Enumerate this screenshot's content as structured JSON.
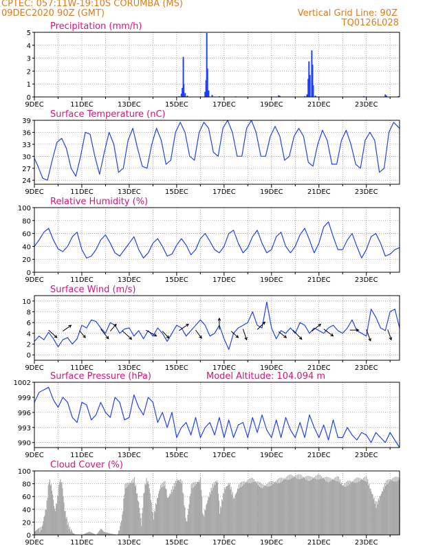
{
  "header": {
    "line1_left": "CPTEC:   057:11W-19:10S   CORUMBA (MS)",
    "line2_left": "09DEC2020 90Z (GMT)",
    "line1_right": "Vertical Grid Line: 90Z",
    "line2_right": "TQ0126L028"
  },
  "colors": {
    "header": "#e07b1a",
    "title": "#e0107a",
    "series": "#1f3fff",
    "cloud": "#a9a9a9",
    "arrow": "#000000"
  },
  "chart_data": [
    {
      "type": "bar",
      "title": "Precipitation (mm/h)",
      "ylim": [
        0,
        5
      ],
      "yticks": [
        0,
        1,
        2,
        3,
        4,
        5
      ],
      "xticks": [
        "9DEC",
        "11DEC",
        "13DEC",
        "15DEC",
        "17DEC",
        "19DEC",
        "21DEC",
        "23DEC"
      ],
      "x_day_range": [
        9,
        24.4
      ],
      "points": [
        [
          9.2,
          0.03
        ],
        [
          11.3,
          0.02
        ],
        [
          13.8,
          0.03
        ],
        [
          15.1,
          0.05
        ],
        [
          15.2,
          0.25
        ],
        [
          15.24,
          0.7
        ],
        [
          15.28,
          3.1
        ],
        [
          15.3,
          1.0
        ],
        [
          15.36,
          0.3
        ],
        [
          15.45,
          0.1
        ],
        [
          16.2,
          0.4
        ],
        [
          16.24,
          1.3
        ],
        [
          16.27,
          4.95
        ],
        [
          16.3,
          2.2
        ],
        [
          16.35,
          0.5
        ],
        [
          16.5,
          0.15
        ],
        [
          16.8,
          0.05
        ],
        [
          17.5,
          0.04
        ],
        [
          19.3,
          0.12
        ],
        [
          19.35,
          0.08
        ],
        [
          20.4,
          0.06
        ],
        [
          20.5,
          0.2
        ],
        [
          20.55,
          1.4
        ],
        [
          20.58,
          2.75
        ],
        [
          20.62,
          1.7
        ],
        [
          20.7,
          3.6
        ],
        [
          20.73,
          2.5
        ],
        [
          20.76,
          0.9
        ],
        [
          20.85,
          0.1
        ],
        [
          22.9,
          0.06
        ],
        [
          23.8,
          0.2
        ],
        [
          23.85,
          0.1
        ],
        [
          24.35,
          0.06
        ]
      ]
    },
    {
      "type": "line",
      "title": "Surface Temperature (nC)",
      "ylim": [
        23,
        39
      ],
      "yticks": [
        24,
        27,
        30,
        33,
        36,
        39
      ],
      "xticks": [
        "9DEC",
        "11DEC",
        "13DEC",
        "15DEC",
        "17DEC",
        "19DEC",
        "21DEC",
        "23DEC"
      ],
      "x": [
        9.0,
        9.15,
        9.35,
        9.55,
        9.75,
        9.95,
        10.15,
        10.35,
        10.55,
        10.75,
        10.95,
        11.15,
        11.35,
        11.55,
        11.75,
        11.95,
        12.15,
        12.35,
        12.55,
        12.75,
        12.95,
        13.15,
        13.35,
        13.55,
        13.75,
        13.95,
        14.15,
        14.35,
        14.55,
        14.75,
        14.95,
        15.15,
        15.35,
        15.55,
        15.75,
        15.95,
        16.15,
        16.35,
        16.55,
        16.75,
        16.95,
        17.15,
        17.35,
        17.55,
        17.75,
        17.95,
        18.15,
        18.35,
        18.55,
        18.75,
        18.95,
        19.15,
        19.35,
        19.55,
        19.75,
        19.95,
        20.15,
        20.35,
        20.55,
        20.75,
        20.95,
        21.15,
        21.35,
        21.55,
        21.75,
        21.95,
        22.15,
        22.35,
        22.55,
        22.75,
        22.95,
        23.15,
        23.35,
        23.55,
        23.75,
        23.95,
        24.15,
        24.4
      ],
      "values": [
        29.5,
        27.5,
        24.5,
        24,
        29,
        33.5,
        34.5,
        32,
        27,
        25,
        30,
        36,
        35.5,
        30,
        25.5,
        31,
        36,
        33,
        26,
        27,
        34,
        37,
        32,
        27.5,
        27,
        33,
        37,
        34,
        28,
        29,
        36,
        38.5,
        36,
        30,
        29,
        36,
        38.5,
        37,
        31,
        30,
        37,
        39,
        36,
        30,
        30,
        37,
        39,
        36,
        30,
        30,
        35,
        37.5,
        35,
        29,
        30,
        35,
        37,
        35,
        28.5,
        27.5,
        33,
        36.5,
        34,
        28,
        28,
        34,
        36.5,
        33,
        28,
        27,
        34,
        36,
        34,
        26,
        27,
        36,
        38.5,
        37
      ]
    },
    {
      "type": "line",
      "title": "Relative Humidity (%)",
      "ylim": [
        0,
        100
      ],
      "yticks": [
        0,
        20,
        40,
        60,
        80,
        100
      ],
      "xticks": [
        "9DEC",
        "11DEC",
        "13DEC",
        "15DEC",
        "17DEC",
        "19DEC",
        "21DEC",
        "23DEC"
      ],
      "x": [
        9.0,
        9.2,
        9.4,
        9.6,
        9.8,
        10.0,
        10.2,
        10.4,
        10.6,
        10.8,
        11.0,
        11.2,
        11.4,
        11.6,
        11.8,
        12.0,
        12.2,
        12.4,
        12.6,
        12.8,
        13.0,
        13.2,
        13.4,
        13.6,
        13.8,
        14.0,
        14.2,
        14.4,
        14.6,
        14.8,
        15.0,
        15.2,
        15.4,
        15.6,
        15.8,
        16.0,
        16.2,
        16.4,
        16.6,
        16.8,
        17.0,
        17.2,
        17.4,
        17.6,
        17.8,
        18.0,
        18.2,
        18.4,
        18.6,
        18.8,
        19.0,
        19.2,
        19.4,
        19.6,
        19.8,
        20.0,
        20.2,
        20.4,
        20.6,
        20.8,
        21.0,
        21.2,
        21.4,
        21.6,
        21.8,
        22.0,
        22.2,
        22.4,
        22.6,
        22.8,
        23.0,
        23.2,
        23.4,
        23.6,
        23.8,
        24.0,
        24.2,
        24.4
      ],
      "values": [
        40,
        50,
        62,
        68,
        50,
        36,
        32,
        40,
        55,
        62,
        35,
        22,
        25,
        35,
        50,
        58,
        45,
        30,
        25,
        35,
        45,
        55,
        35,
        22,
        30,
        45,
        52,
        40,
        25,
        28,
        42,
        52,
        42,
        27,
        35,
        52,
        60,
        48,
        35,
        30,
        40,
        60,
        65,
        45,
        30,
        38,
        55,
        65,
        45,
        30,
        35,
        55,
        62,
        40,
        30,
        40,
        58,
        68,
        50,
        30,
        45,
        70,
        78,
        55,
        35,
        35,
        50,
        60,
        40,
        22,
        35,
        55,
        60,
        45,
        25,
        28,
        35,
        38
      ]
    },
    {
      "type": "line",
      "title": "Surface Wind (m/s)",
      "ylim": [
        -1,
        11
      ],
      "yticks": [
        0,
        2,
        4,
        6,
        8,
        10
      ],
      "xticks": [
        "9DEC",
        "11DEC",
        "13DEC",
        "15DEC",
        "17DEC",
        "19DEC",
        "21DEC",
        "23DEC"
      ],
      "x": [
        9.0,
        9.2,
        9.4,
        9.6,
        9.8,
        10.0,
        10.2,
        10.4,
        10.6,
        10.8,
        11.0,
        11.2,
        11.4,
        11.6,
        11.8,
        12.0,
        12.2,
        12.4,
        12.6,
        12.8,
        13.0,
        13.2,
        13.4,
        13.6,
        13.8,
        14.0,
        14.2,
        14.4,
        14.6,
        14.8,
        15.0,
        15.2,
        15.4,
        15.6,
        15.8,
        16.0,
        16.2,
        16.4,
        16.6,
        16.8,
        17.0,
        17.2,
        17.4,
        17.6,
        17.8,
        18.0,
        18.2,
        18.4,
        18.6,
        18.8,
        19.0,
        19.2,
        19.4,
        19.6,
        19.8,
        20.0,
        20.2,
        20.4,
        20.6,
        20.8,
        21.0,
        21.2,
        21.4,
        21.6,
        21.8,
        22.0,
        22.2,
        22.4,
        22.6,
        22.8,
        23.0,
        23.2,
        23.4,
        23.6,
        23.8,
        24.0,
        24.2,
        24.4
      ],
      "values": [
        2.5,
        3.5,
        2.8,
        4.2,
        3.0,
        1.5,
        2.8,
        3.2,
        2.0,
        3.0,
        5.5,
        5.0,
        6.5,
        6.2,
        5.0,
        4.0,
        6.0,
        5.5,
        4.0,
        4.8,
        5.0,
        3.5,
        4.5,
        3.0,
        4.5,
        3.5,
        5.0,
        4.0,
        2.5,
        4.0,
        5.5,
        5.0,
        3.5,
        4.5,
        5.5,
        6.5,
        5.5,
        3.5,
        4.0,
        5.5,
        3.0,
        1.0,
        4.0,
        5.0,
        5.5,
        6.0,
        8.0,
        5.5,
        5.0,
        9.8,
        5.0,
        3.0,
        4.5,
        4.0,
        5.0,
        4.0,
        6.0,
        5.5,
        4.0,
        5.0,
        4.5,
        4.0,
        5.0,
        5.5,
        4.5,
        4.0,
        5.0,
        6.5,
        4.5,
        4.0,
        3.5,
        8.5,
        7.0,
        5.0,
        4.5,
        8.0,
        8.5,
        5.0
      ],
      "arrows": [
        [
          9.6,
          0.6,
          1.4,
          -1.4
        ],
        [
          10.2,
          0.4,
          1.4,
          1.1
        ],
        [
          10.9,
          0.5,
          1.0,
          -1.3
        ],
        [
          11.8,
          0.8,
          1.3,
          -1.8
        ],
        [
          12.2,
          0.4,
          1.0,
          1.3
        ],
        [
          12.7,
          0.5,
          1.6,
          -1.6
        ],
        [
          13.7,
          0.6,
          1.8,
          -1.1
        ],
        [
          14.4,
          0.4,
          1.1,
          -1.3
        ],
        [
          15.1,
          0.5,
          1.6,
          1.2
        ],
        [
          15.8,
          0.6,
          1.0,
          -1.5
        ],
        [
          16.8,
          0.7,
          0.0,
          2.1
        ],
        [
          17.3,
          0.4,
          1.2,
          -1.2
        ],
        [
          17.8,
          0.8,
          0.6,
          -2.0
        ],
        [
          18.4,
          0.7,
          1.3,
          1.4
        ],
        [
          19.3,
          0.3,
          1.3,
          -1.1
        ],
        [
          19.9,
          0.6,
          1.5,
          -1.7
        ],
        [
          20.7,
          0.4,
          1.5,
          1.3
        ],
        [
          21.2,
          0.8,
          1.6,
          -1.3
        ],
        [
          22.3,
          0.6,
          1.5,
          0.0
        ],
        [
          23.0,
          0.7,
          0.7,
          -2.1
        ],
        [
          23.9,
          0.7,
          0.6,
          -1.9
        ]
      ]
    },
    {
      "type": "line",
      "title": "Surface Pressure (hPa)",
      "annotation": "Model Altitude: 104.094 m",
      "ylim": [
        989,
        1002
      ],
      "yticks": [
        990,
        993,
        996,
        999,
        1002
      ],
      "xticks": [
        "9DEC",
        "11DEC",
        "13DEC",
        "15DEC",
        "17DEC",
        "19DEC",
        "21DEC",
        "23DEC"
      ],
      "x": [
        9.0,
        9.2,
        9.4,
        9.6,
        9.8,
        10.0,
        10.2,
        10.4,
        10.6,
        10.8,
        11.0,
        11.2,
        11.4,
        11.6,
        11.8,
        12.0,
        12.2,
        12.4,
        12.6,
        12.8,
        13.0,
        13.2,
        13.4,
        13.6,
        13.8,
        14.0,
        14.2,
        14.4,
        14.6,
        14.8,
        15.0,
        15.2,
        15.4,
        15.6,
        15.8,
        16.0,
        16.2,
        16.4,
        16.6,
        16.8,
        17.0,
        17.2,
        17.4,
        17.6,
        17.8,
        18.0,
        18.2,
        18.4,
        18.6,
        18.8,
        19.0,
        19.2,
        19.4,
        19.6,
        19.8,
        20.0,
        20.2,
        20.4,
        20.6,
        20.8,
        21.0,
        21.2,
        21.4,
        21.6,
        21.8,
        22.0,
        22.2,
        22.4,
        22.6,
        22.8,
        23.0,
        23.2,
        23.4,
        23.6,
        23.8,
        24.0,
        24.2,
        24.4
      ],
      "values": [
        998,
        1000,
        1000.5,
        1001,
        998.5,
        997,
        999,
        998,
        995,
        994,
        998,
        997.5,
        994.5,
        995.5,
        998,
        996,
        995,
        999,
        998,
        994.5,
        995,
        999.5,
        997,
        995.5,
        999,
        998,
        994,
        996,
        993,
        996,
        991,
        993,
        994,
        991.5,
        995,
        991,
        993,
        994,
        991.5,
        995,
        991,
        994.5,
        991,
        993.5,
        994,
        991,
        995,
        992,
        995.5,
        992.5,
        991,
        994.5,
        991,
        995,
        992.5,
        991,
        994,
        991,
        995.5,
        993,
        991,
        993.5,
        990.5,
        994.5,
        991,
        991,
        993,
        991.5,
        990.5,
        992,
        991.5,
        990,
        992,
        991,
        990,
        992,
        990.5,
        989
      ]
    },
    {
      "type": "area",
      "title": "Cloud Cover (%)",
      "ylim": [
        0,
        100
      ],
      "yticks": [
        0,
        20,
        40,
        60,
        80,
        100
      ],
      "xticks": [
        "9DEC",
        "11DEC",
        "13DEC",
        "15DEC",
        "17DEC",
        "19DEC",
        "21DEC",
        "23DEC"
      ],
      "x": [
        9.0,
        9.3,
        9.5,
        9.6,
        9.7,
        9.85,
        10.0,
        10.05,
        10.15,
        10.25,
        10.4,
        10.6,
        10.75,
        11.0,
        11.3,
        11.6,
        11.8,
        11.9,
        12.2,
        12.5,
        12.7,
        12.8,
        13.0,
        13.2,
        13.4,
        13.5,
        13.6,
        13.7,
        13.8,
        14.0,
        14.1,
        14.3,
        14.5,
        14.6,
        14.8,
        15.0,
        15.2,
        15.4,
        15.6,
        15.8,
        16.0,
        16.1,
        16.3,
        16.5,
        16.7,
        16.8,
        17.0,
        17.2,
        17.4,
        17.6,
        17.8,
        18.0,
        18.2,
        18.4,
        18.6,
        18.8,
        19.0,
        19.4,
        19.8,
        20.2,
        20.6,
        21.0,
        21.4,
        21.8,
        22.0,
        22.2,
        22.6,
        23.0,
        23.4,
        23.8,
        24.0,
        24.4
      ],
      "values": [
        5,
        15,
        50,
        90,
        80,
        40,
        70,
        90,
        85,
        45,
        20,
        3,
        0,
        0,
        5,
        0,
        10,
        5,
        2,
        0,
        35,
        80,
        85,
        90,
        50,
        20,
        70,
        90,
        85,
        30,
        50,
        80,
        85,
        60,
        75,
        90,
        88,
        20,
        80,
        85,
        90,
        30,
        60,
        80,
        90,
        40,
        75,
        85,
        60,
        80,
        85,
        88,
        90,
        85,
        80,
        82,
        85,
        90,
        95,
        95,
        92,
        95,
        90,
        92,
        80,
        85,
        90,
        92,
        50,
        85,
        90,
        92
      ]
    }
  ]
}
